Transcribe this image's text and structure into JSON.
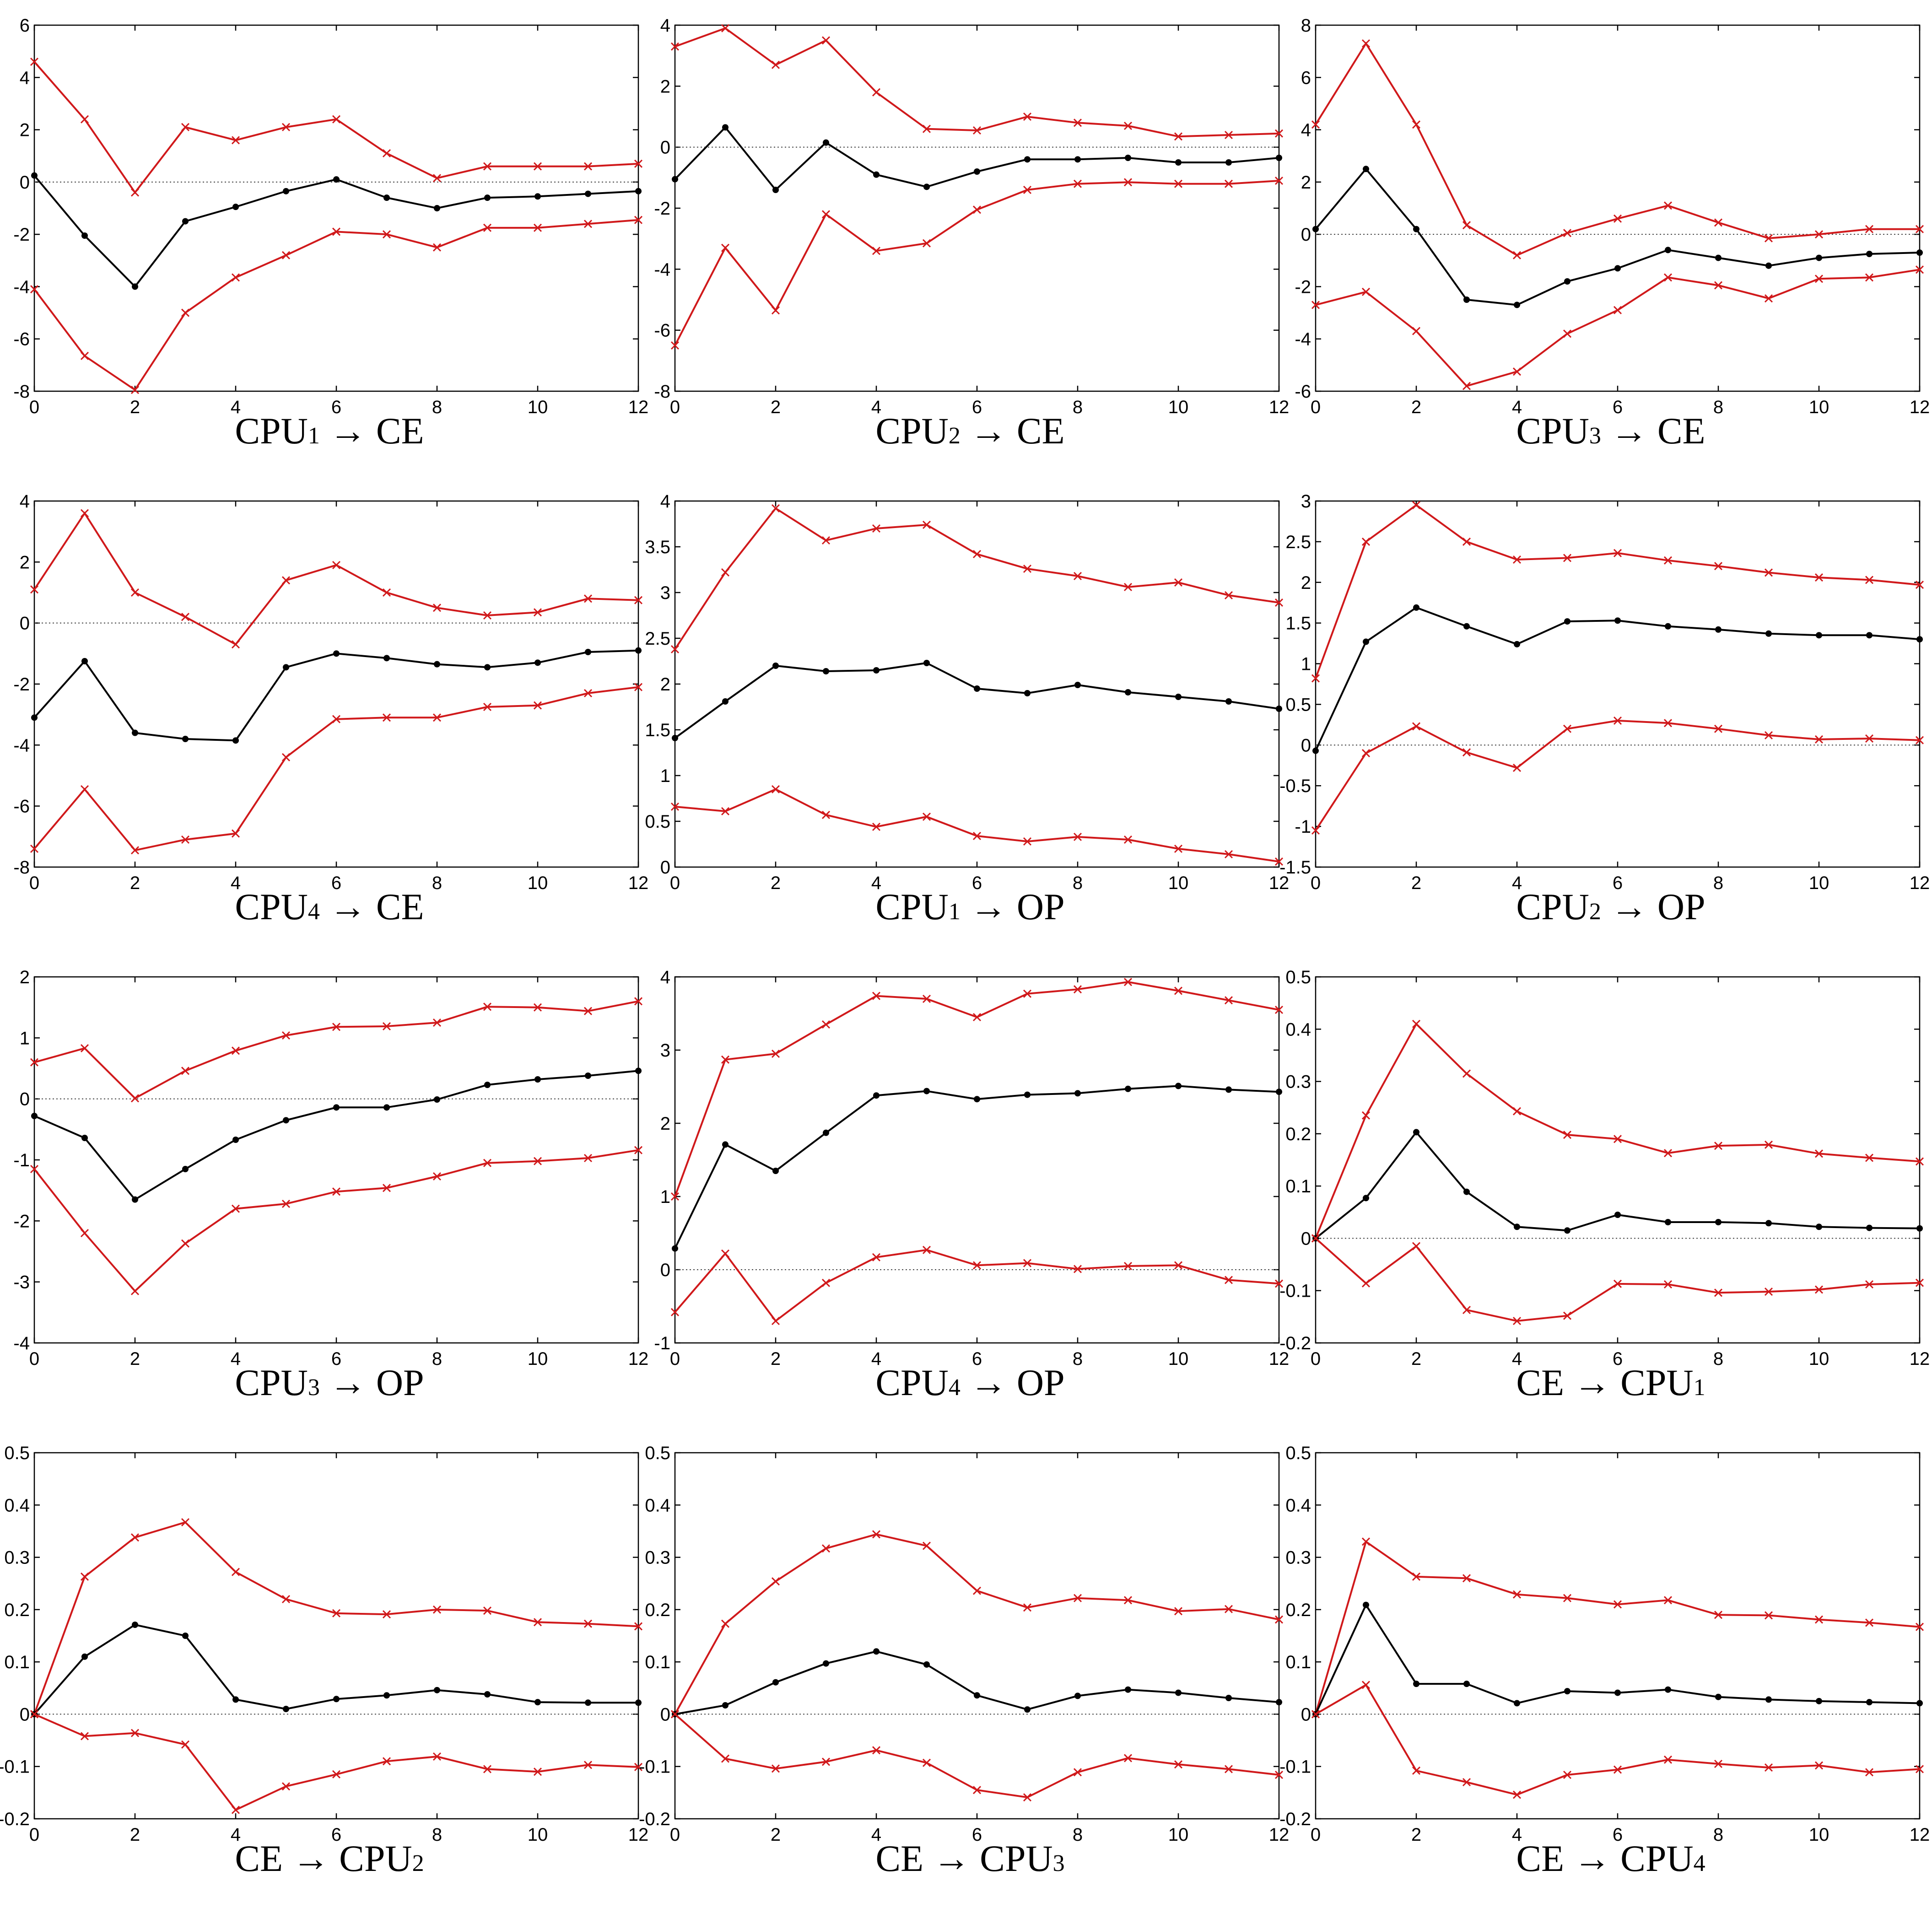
{
  "colors": {
    "center": "#000000",
    "band": "#d0191b",
    "zero_line": "#444444"
  },
  "chart_data": [
    {
      "type": "line",
      "caption": {
        "prefix": "CPU",
        "sub": "1",
        "suffix": " → CE"
      },
      "x": [
        0,
        1,
        2,
        3,
        4,
        5,
        6,
        7,
        8,
        9,
        10,
        11,
        12
      ],
      "xlim": [
        0,
        12
      ],
      "xticks": [
        "0",
        "2",
        "4",
        "6",
        "8",
        "10",
        "12"
      ],
      "ylim": [
        -8,
        6
      ],
      "yticks": [
        "-8",
        "-6",
        "-4",
        "-2",
        "0",
        "2",
        "4",
        "6"
      ],
      "series": [
        {
          "role": "upper",
          "values": [
            4.6,
            2.4,
            -0.4,
            2.1,
            1.6,
            2.1,
            2.4,
            1.1,
            0.15,
            0.6,
            0.6,
            0.6,
            0.7
          ]
        },
        {
          "role": "center",
          "values": [
            0.25,
            -2.05,
            -4.0,
            -1.5,
            -0.95,
            -0.35,
            0.1,
            -0.6,
            -1.0,
            -0.6,
            -0.55,
            -0.45,
            -0.35
          ]
        },
        {
          "role": "lower",
          "values": [
            -4.1,
            -6.65,
            -7.95,
            -5.0,
            -3.65,
            -2.8,
            -1.9,
            -2.0,
            -2.5,
            -1.75,
            -1.75,
            -1.6,
            -1.45
          ]
        }
      ]
    },
    {
      "type": "line",
      "caption": {
        "prefix": "CPU",
        "sub": "2",
        "suffix": " → CE"
      },
      "x": [
        0,
        1,
        2,
        3,
        4,
        5,
        6,
        7,
        8,
        9,
        10,
        11,
        12
      ],
      "xlim": [
        0,
        12
      ],
      "xticks": [
        "0",
        "2",
        "4",
        "6",
        "8",
        "10",
        "12"
      ],
      "ylim": [
        -8,
        4
      ],
      "yticks": [
        "-8",
        "-6",
        "-4",
        "-2",
        "0",
        "2",
        "4"
      ],
      "series": [
        {
          "role": "upper",
          "values": [
            3.3,
            3.9,
            2.7,
            3.5,
            1.8,
            0.6,
            0.55,
            1.0,
            0.8,
            0.7,
            0.35,
            0.4,
            0.45
          ]
        },
        {
          "role": "center",
          "values": [
            -1.05,
            0.65,
            -1.4,
            0.15,
            -0.9,
            -1.3,
            -0.8,
            -0.4,
            -0.4,
            -0.35,
            -0.5,
            -0.5,
            -0.35
          ]
        },
        {
          "role": "lower",
          "values": [
            -6.5,
            -3.3,
            -5.35,
            -2.2,
            -3.4,
            -3.15,
            -2.05,
            -1.4,
            -1.2,
            -1.15,
            -1.2,
            -1.2,
            -1.1
          ]
        }
      ]
    },
    {
      "type": "line",
      "caption": {
        "prefix": "CPU",
        "sub": "3",
        "suffix": " → CE"
      },
      "x": [
        0,
        1,
        2,
        3,
        4,
        5,
        6,
        7,
        8,
        9,
        10,
        11,
        12
      ],
      "xlim": [
        0,
        12
      ],
      "xticks": [
        "0",
        "2",
        "4",
        "6",
        "8",
        "10",
        "12"
      ],
      "ylim": [
        -6,
        8
      ],
      "yticks": [
        "-6",
        "-4",
        "-2",
        "0",
        "2",
        "4",
        "6",
        "8"
      ],
      "series": [
        {
          "role": "upper",
          "values": [
            4.2,
            7.3,
            4.2,
            0.35,
            -0.8,
            0.05,
            0.6,
            1.1,
            0.45,
            -0.15,
            0.0,
            0.2,
            0.2
          ]
        },
        {
          "role": "center",
          "values": [
            0.2,
            2.5,
            0.2,
            -2.5,
            -2.7,
            -1.8,
            -1.3,
            -0.6,
            -0.9,
            -1.2,
            -0.9,
            -0.75,
            -0.7
          ]
        },
        {
          "role": "lower",
          "values": [
            -2.7,
            -2.2,
            -3.7,
            -5.8,
            -5.25,
            -3.8,
            -2.9,
            -1.65,
            -1.95,
            -2.45,
            -1.7,
            -1.65,
            -1.35
          ]
        }
      ]
    },
    {
      "type": "line",
      "caption": {
        "prefix": "CPU",
        "sub": "4",
        "suffix": " → CE"
      },
      "x": [
        0,
        1,
        2,
        3,
        4,
        5,
        6,
        7,
        8,
        9,
        10,
        11,
        12
      ],
      "xlim": [
        0,
        12
      ],
      "xticks": [
        "0",
        "2",
        "4",
        "6",
        "8",
        "10",
        "12"
      ],
      "ylim": [
        -8,
        4
      ],
      "yticks": [
        "-8",
        "-6",
        "-4",
        "-2",
        "0",
        "2",
        "4"
      ],
      "series": [
        {
          "role": "upper",
          "values": [
            1.1,
            3.6,
            1.0,
            0.2,
            -0.7,
            1.4,
            1.9,
            1.0,
            0.5,
            0.25,
            0.35,
            0.8,
            0.75
          ]
        },
        {
          "role": "center",
          "values": [
            -3.1,
            -1.25,
            -3.6,
            -3.8,
            -3.85,
            -1.45,
            -1.0,
            -1.15,
            -1.35,
            -1.45,
            -1.3,
            -0.95,
            -0.9
          ]
        },
        {
          "role": "lower",
          "values": [
            -7.4,
            -5.45,
            -7.45,
            -7.1,
            -6.9,
            -4.4,
            -3.15,
            -3.1,
            -3.1,
            -2.75,
            -2.7,
            -2.3,
            -2.1
          ]
        }
      ]
    },
    {
      "type": "line",
      "caption": {
        "prefix": "CPU",
        "sub": "1",
        "suffix": " → OP"
      },
      "x": [
        0,
        1,
        2,
        3,
        4,
        5,
        6,
        7,
        8,
        9,
        10,
        11,
        12
      ],
      "xlim": [
        0,
        12
      ],
      "xticks": [
        "0",
        "2",
        "4",
        "6",
        "8",
        "10",
        "12"
      ],
      "ylim": [
        0,
        4
      ],
      "yticks": [
        "0",
        "0.5",
        "1",
        "1.5",
        "2",
        "2.5",
        "3",
        "3.5",
        "4"
      ],
      "series": [
        {
          "role": "upper",
          "values": [
            2.38,
            3.22,
            3.92,
            3.57,
            3.7,
            3.74,
            3.42,
            3.26,
            3.18,
            3.06,
            3.11,
            2.97,
            2.89
          ]
        },
        {
          "role": "center",
          "values": [
            1.41,
            1.81,
            2.2,
            2.14,
            2.15,
            2.23,
            1.95,
            1.9,
            1.99,
            1.91,
            1.86,
            1.81,
            1.73
          ]
        },
        {
          "role": "lower",
          "values": [
            0.66,
            0.61,
            0.85,
            0.57,
            0.44,
            0.55,
            0.34,
            0.28,
            0.33,
            0.3,
            0.2,
            0.14,
            0.06
          ]
        }
      ]
    },
    {
      "type": "line",
      "caption": {
        "prefix": "CPU",
        "sub": "2",
        "suffix": " → OP"
      },
      "x": [
        0,
        1,
        2,
        3,
        4,
        5,
        6,
        7,
        8,
        9,
        10,
        11,
        12
      ],
      "xlim": [
        0,
        12
      ],
      "xticks": [
        "0",
        "2",
        "4",
        "6",
        "8",
        "10",
        "12"
      ],
      "ylim": [
        -1.5,
        3
      ],
      "yticks": [
        "-1.5",
        "-1",
        "-0.5",
        "0",
        "0.5",
        "1",
        "1.5",
        "2",
        "2.5",
        "3"
      ],
      "series": [
        {
          "role": "upper",
          "values": [
            0.82,
            2.5,
            2.95,
            2.5,
            2.28,
            2.3,
            2.36,
            2.27,
            2.2,
            2.12,
            2.06,
            2.03,
            1.97
          ]
        },
        {
          "role": "center",
          "values": [
            -0.07,
            1.27,
            1.69,
            1.46,
            1.24,
            1.52,
            1.53,
            1.46,
            1.42,
            1.37,
            1.35,
            1.35,
            1.3
          ]
        },
        {
          "role": "lower",
          "values": [
            -1.05,
            -0.1,
            0.23,
            -0.09,
            -0.28,
            0.2,
            0.3,
            0.27,
            0.2,
            0.12,
            0.07,
            0.08,
            0.06
          ]
        }
      ]
    },
    {
      "type": "line",
      "caption": {
        "prefix": "CPU",
        "sub": "3",
        "suffix": " → OP"
      },
      "x": [
        0,
        1,
        2,
        3,
        4,
        5,
        6,
        7,
        8,
        9,
        10,
        11,
        12
      ],
      "xlim": [
        0,
        12
      ],
      "xticks": [
        "0",
        "2",
        "4",
        "6",
        "8",
        "10",
        "12"
      ],
      "ylim": [
        -4,
        2
      ],
      "yticks": [
        "-4",
        "-3",
        "-2",
        "-1",
        "0",
        "1",
        "2"
      ],
      "series": [
        {
          "role": "upper",
          "values": [
            0.6,
            0.83,
            0.01,
            0.46,
            0.79,
            1.04,
            1.18,
            1.19,
            1.25,
            1.51,
            1.5,
            1.44,
            1.6
          ]
        },
        {
          "role": "center",
          "values": [
            -0.28,
            -0.64,
            -1.65,
            -1.15,
            -0.67,
            -0.35,
            -0.14,
            -0.14,
            -0.01,
            0.23,
            0.32,
            0.38,
            0.46
          ]
        },
        {
          "role": "lower",
          "values": [
            -1.15,
            -2.2,
            -3.15,
            -2.37,
            -1.8,
            -1.72,
            -1.52,
            -1.46,
            -1.27,
            -1.05,
            -1.02,
            -0.97,
            -0.84
          ]
        }
      ]
    },
    {
      "type": "line",
      "caption": {
        "prefix": "CPU",
        "sub": "4",
        "suffix": " → OP"
      },
      "x": [
        0,
        1,
        2,
        3,
        4,
        5,
        6,
        7,
        8,
        9,
        10,
        11,
        12
      ],
      "xlim": [
        0,
        12
      ],
      "xticks": [
        "0",
        "2",
        "4",
        "6",
        "8",
        "10",
        "12"
      ],
      "ylim": [
        -1,
        4
      ],
      "yticks": [
        "-1",
        "0",
        "1",
        "2",
        "3",
        "4"
      ],
      "series": [
        {
          "role": "upper",
          "values": [
            1.0,
            2.87,
            2.95,
            3.35,
            3.74,
            3.7,
            3.45,
            3.77,
            3.83,
            3.93,
            3.81,
            3.68,
            3.55
          ]
        },
        {
          "role": "center",
          "values": [
            0.29,
            1.71,
            1.35,
            1.87,
            2.38,
            2.44,
            2.33,
            2.39,
            2.41,
            2.47,
            2.51,
            2.46,
            2.43
          ]
        },
        {
          "role": "lower",
          "values": [
            -0.58,
            0.22,
            -0.7,
            -0.18,
            0.17,
            0.27,
            0.06,
            0.09,
            0.01,
            0.05,
            0.06,
            -0.14,
            -0.19
          ]
        }
      ]
    },
    {
      "type": "line",
      "caption": {
        "prefix": "CE → CPU",
        "sub": "1",
        "suffix": ""
      },
      "x": [
        0,
        1,
        2,
        3,
        4,
        5,
        6,
        7,
        8,
        9,
        10,
        11,
        12
      ],
      "xlim": [
        0,
        12
      ],
      "xticks": [
        "0",
        "2",
        "4",
        "6",
        "8",
        "10",
        "12"
      ],
      "ylim": [
        -0.2,
        0.5
      ],
      "yticks": [
        "-0.2",
        "-0.1",
        "0",
        "0.1",
        "0.2",
        "0.3",
        "0.4",
        "0.5"
      ],
      "series": [
        {
          "role": "upper",
          "values": [
            0.0,
            0.235,
            0.41,
            0.315,
            0.243,
            0.198,
            0.19,
            0.163,
            0.177,
            0.179,
            0.162,
            0.154,
            0.147
          ]
        },
        {
          "role": "center",
          "values": [
            0.0,
            0.077,
            0.203,
            0.089,
            0.022,
            0.015,
            0.045,
            0.031,
            0.031,
            0.029,
            0.022,
            0.02,
            0.019
          ]
        },
        {
          "role": "lower",
          "values": [
            0.0,
            -0.086,
            -0.015,
            -0.137,
            -0.158,
            -0.148,
            -0.087,
            -0.088,
            -0.104,
            -0.102,
            -0.098,
            -0.088,
            -0.085
          ]
        }
      ]
    },
    {
      "type": "line",
      "caption": {
        "prefix": "CE → CPU",
        "sub": "2",
        "suffix": ""
      },
      "x": [
        0,
        1,
        2,
        3,
        4,
        5,
        6,
        7,
        8,
        9,
        10,
        11,
        12
      ],
      "xlim": [
        0,
        12
      ],
      "xticks": [
        "0",
        "2",
        "4",
        "6",
        "8",
        "10",
        "12"
      ],
      "ylim": [
        -0.2,
        0.5
      ],
      "yticks": [
        "-0.2",
        "-0.1",
        "0",
        "0.1",
        "0.2",
        "0.3",
        "0.4",
        "0.5"
      ],
      "series": [
        {
          "role": "upper",
          "values": [
            0.0,
            0.263,
            0.338,
            0.367,
            0.272,
            0.22,
            0.193,
            0.191,
            0.2,
            0.198,
            0.176,
            0.173,
            0.168
          ]
        },
        {
          "role": "center",
          "values": [
            0.0,
            0.11,
            0.171,
            0.15,
            0.028,
            0.01,
            0.029,
            0.036,
            0.046,
            0.038,
            0.023,
            0.022,
            0.022
          ]
        },
        {
          "role": "lower",
          "values": [
            0.0,
            -0.042,
            -0.036,
            -0.058,
            -0.183,
            -0.138,
            -0.115,
            -0.09,
            -0.081,
            -0.105,
            -0.11,
            -0.097,
            -0.101
          ]
        }
      ]
    },
    {
      "type": "line",
      "caption": {
        "prefix": "CE → CPU",
        "sub": "3",
        "suffix": ""
      },
      "x": [
        0,
        1,
        2,
        3,
        4,
        5,
        6,
        7,
        8,
        9,
        10,
        11,
        12
      ],
      "xlim": [
        0,
        12
      ],
      "xticks": [
        "0",
        "2",
        "4",
        "6",
        "8",
        "10",
        "12"
      ],
      "ylim": [
        -0.2,
        0.5
      ],
      "yticks": [
        "-0.2",
        "-0.1",
        "0",
        "0.1",
        "0.2",
        "0.3",
        "0.4",
        "0.5"
      ],
      "series": [
        {
          "role": "upper",
          "values": [
            0.0,
            0.173,
            0.254,
            0.317,
            0.344,
            0.322,
            0.236,
            0.204,
            0.222,
            0.218,
            0.197,
            0.201,
            0.181
          ]
        },
        {
          "role": "center",
          "values": [
            0.0,
            0.017,
            0.061,
            0.097,
            0.12,
            0.095,
            0.036,
            0.009,
            0.035,
            0.047,
            0.041,
            0.031,
            0.023
          ]
        },
        {
          "role": "lower",
          "values": [
            0.0,
            -0.085,
            -0.104,
            -0.091,
            -0.069,
            -0.093,
            -0.145,
            -0.159,
            -0.111,
            -0.084,
            -0.096,
            -0.105,
            -0.116
          ]
        }
      ]
    },
    {
      "type": "line",
      "caption": {
        "prefix": "CE → CPU",
        "sub": "4",
        "suffix": ""
      },
      "x": [
        0,
        1,
        2,
        3,
        4,
        5,
        6,
        7,
        8,
        9,
        10,
        11,
        12
      ],
      "xlim": [
        0,
        12
      ],
      "xticks": [
        "0",
        "2",
        "4",
        "6",
        "8",
        "10",
        "12"
      ],
      "ylim": [
        -0.2,
        0.5
      ],
      "yticks": [
        "-0.2",
        "-0.1",
        "0",
        "0.1",
        "0.2",
        "0.3",
        "0.4",
        "0.5"
      ],
      "series": [
        {
          "role": "upper",
          "values": [
            0.0,
            0.33,
            0.263,
            0.26,
            0.229,
            0.222,
            0.21,
            0.218,
            0.19,
            0.189,
            0.181,
            0.175,
            0.167
          ]
        },
        {
          "role": "center",
          "values": [
            0.0,
            0.209,
            0.058,
            0.058,
            0.021,
            0.044,
            0.041,
            0.047,
            0.033,
            0.028,
            0.025,
            0.023,
            0.021
          ]
        },
        {
          "role": "lower",
          "values": [
            0.0,
            0.056,
            -0.108,
            -0.13,
            -0.154,
            -0.116,
            -0.106,
            -0.087,
            -0.095,
            -0.102,
            -0.098,
            -0.111,
            -0.105
          ]
        }
      ]
    }
  ]
}
